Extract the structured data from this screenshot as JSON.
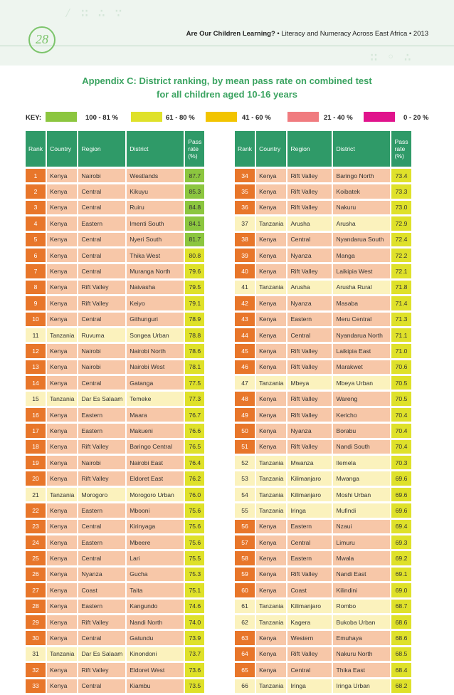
{
  "header": {
    "page_number": "28",
    "running_title_bold": "Are Our Children Learning?",
    "running_title_rest": " • Literacy and Numeracy Across East Africa • 2013"
  },
  "title": {
    "line1": "Appendix C: District ranking, by mean pass rate on combined test",
    "line2": "for all children aged 10-16 years"
  },
  "key": {
    "label": "KEY:",
    "items": [
      {
        "label": "100 - 81 %",
        "color": "#8cc63f"
      },
      {
        "label": "61 - 80 %",
        "color": "#dfe12a"
      },
      {
        "label": "41 - 60 %",
        "color": "#f2c400"
      },
      {
        "label": "21 - 40 %",
        "color": "#f07b7f"
      },
      {
        "label": "0 - 20 %",
        "color": "#e0138c"
      }
    ]
  },
  "columns": [
    "Rank",
    "Country",
    "Region",
    "District",
    "Pass rate (%)"
  ],
  "left_rows": [
    [
      "1",
      "Kenya",
      "Nairobi",
      "Westlands",
      "87.7"
    ],
    [
      "2",
      "Kenya",
      "Central",
      "Kikuyu",
      "85.3"
    ],
    [
      "3",
      "Kenya",
      "Central",
      "Ruiru",
      "84.8"
    ],
    [
      "4",
      "Kenya",
      "Eastern",
      "Imenti South",
      "84.1"
    ],
    [
      "5",
      "Kenya",
      "Central",
      "Nyeri South",
      "81.7"
    ],
    [
      "6",
      "Kenya",
      "Central",
      "Thika West",
      "80.8"
    ],
    [
      "7",
      "Kenya",
      "Central",
      "Muranga North",
      "79.6"
    ],
    [
      "8",
      "Kenya",
      "Rift Valley",
      "Naivasha",
      "79.5"
    ],
    [
      "9",
      "Kenya",
      "Rift Valley",
      "Keiyo",
      "79.1"
    ],
    [
      "10",
      "Kenya",
      "Central",
      "Githunguri",
      "78.9"
    ],
    [
      "11",
      "Tanzania",
      "Ruvuma",
      "Songea Urban",
      "78.8"
    ],
    [
      "12",
      "Kenya",
      "Nairobi",
      "Nairobi North",
      "78.6"
    ],
    [
      "13",
      "Kenya",
      "Nairobi",
      "Nairobi West",
      "78.1"
    ],
    [
      "14",
      "Kenya",
      "Central",
      "Gatanga",
      "77.5"
    ],
    [
      "15",
      "Tanzania",
      "Dar Es Salaam",
      "Temeke",
      "77.3"
    ],
    [
      "16",
      "Kenya",
      "Eastern",
      "Maara",
      "76.7"
    ],
    [
      "17",
      "Kenya",
      "Eastern",
      "Makueni",
      "76.6"
    ],
    [
      "18",
      "Kenya",
      "Rift Valley",
      "Baringo Central",
      "76.5"
    ],
    [
      "19",
      "Kenya",
      "Nairobi",
      "Nairobi East",
      "76.4"
    ],
    [
      "20",
      "Kenya",
      "Rift Valley",
      "Eldoret East",
      "76.2"
    ],
    [
      "21",
      "Tanzania",
      "Morogoro",
      "Morogoro Urban",
      "76.0"
    ],
    [
      "22",
      "Kenya",
      "Eastern",
      "Mbooni",
      "75.6"
    ],
    [
      "23",
      "Kenya",
      "Central",
      "Kirinyaga",
      "75.6"
    ],
    [
      "24",
      "Kenya",
      "Eastern",
      "Mbeere",
      "75.6"
    ],
    [
      "25",
      "Kenya",
      "Central",
      "Lari",
      "75.5"
    ],
    [
      "26",
      "Kenya",
      "Nyanza",
      "Gucha",
      "75.3"
    ],
    [
      "27",
      "Kenya",
      "Coast",
      "Taita",
      "75.1"
    ],
    [
      "28",
      "Kenya",
      "Eastern",
      "Kangundo",
      "74.6"
    ],
    [
      "29",
      "Kenya",
      "Rift Valley",
      "Nandi North",
      "74.0"
    ],
    [
      "30",
      "Kenya",
      "Central",
      "Gatundu",
      "73.9"
    ],
    [
      "31",
      "Tanzania",
      "Dar Es Salaam",
      "Kinondoni",
      "73.7"
    ],
    [
      "32",
      "Kenya",
      "Rift Valley",
      "Eldoret West",
      "73.6"
    ],
    [
      "33",
      "Kenya",
      "Central",
      "Kiambu",
      "73.5"
    ]
  ],
  "right_rows": [
    [
      "34",
      "Kenya",
      "Rift Valley",
      "Baringo North",
      "73.4"
    ],
    [
      "35",
      "Kenya",
      "Rift Valley",
      "Koibatek",
      "73.3"
    ],
    [
      "36",
      "Kenya",
      "Rift Valley",
      "Nakuru",
      "73.0"
    ],
    [
      "37",
      "Tanzania",
      "Arusha",
      "Arusha",
      "72.9"
    ],
    [
      "38",
      "Kenya",
      "Central",
      "Nyandarua South",
      "72.4"
    ],
    [
      "39",
      "Kenya",
      "Nyanza",
      "Manga",
      "72.2"
    ],
    [
      "40",
      "Kenya",
      "Rift Valley",
      "Laikipia West",
      "72.1"
    ],
    [
      "41",
      "Tanzania",
      "Arusha",
      "Arusha Rural",
      "71.8"
    ],
    [
      "42",
      "Kenya",
      "Nyanza",
      "Masaba",
      "71.4"
    ],
    [
      "43",
      "Kenya",
      "Eastern",
      "Meru Central",
      "71.3"
    ],
    [
      "44",
      "Kenya",
      "Central",
      "Nyandarua North",
      "71.1"
    ],
    [
      "45",
      "Kenya",
      "Rift Valley",
      "Laikipia East",
      "71.0"
    ],
    [
      "46",
      "Kenya",
      "Rift Valley",
      "Marakwet",
      "70.6"
    ],
    [
      "47",
      "Tanzania",
      "Mbeya",
      "Mbeya Urban",
      "70.5"
    ],
    [
      "48",
      "Kenya",
      "Rift Valley",
      "Wareng",
      "70.5"
    ],
    [
      "49",
      "Kenya",
      "Rift Valley",
      "Kericho",
      "70.4"
    ],
    [
      "50",
      "Kenya",
      "Nyanza",
      "Borabu",
      "70.4"
    ],
    [
      "51",
      "Kenya",
      "Rift Valley",
      "Nandi South",
      "70.4"
    ],
    [
      "52",
      "Tanzania",
      "Mwanza",
      "Ilemela",
      "70.3"
    ],
    [
      "53",
      "Tanzania",
      "Kilimanjaro",
      "Mwanga",
      "69.6"
    ],
    [
      "54",
      "Tanzania",
      "Kilimanjaro",
      "Moshi Urban",
      "69.6"
    ],
    [
      "55",
      "Tanzania",
      "Iringa",
      "Mufindi",
      "69.6"
    ],
    [
      "56",
      "Kenya",
      "Eastern",
      "Nzaui",
      "69.4"
    ],
    [
      "57",
      "Kenya",
      "Central",
      "Limuru",
      "69.3"
    ],
    [
      "58",
      "Kenya",
      "Eastern",
      "Mwala",
      "69.2"
    ],
    [
      "59",
      "Kenya",
      "Rift Valley",
      "Nandi East",
      "69.1"
    ],
    [
      "60",
      "Kenya",
      "Coast",
      "Kilindini",
      "69.0"
    ],
    [
      "61",
      "Tanzania",
      "Kilimanjaro",
      "Rombo",
      "68.7"
    ],
    [
      "62",
      "Tanzania",
      "Kagera",
      "Bukoba Urban",
      "68.6"
    ],
    [
      "63",
      "Kenya",
      "Western",
      "Emuhaya",
      "68.6"
    ],
    [
      "64",
      "Kenya",
      "Rift Valley",
      "Nakuru North",
      "68.5"
    ],
    [
      "65",
      "Kenya",
      "Central",
      "Thika East",
      "68.4"
    ],
    [
      "66",
      "Tanzania",
      "Iringa",
      "Iringa Urban",
      "68.2"
    ]
  ]
}
